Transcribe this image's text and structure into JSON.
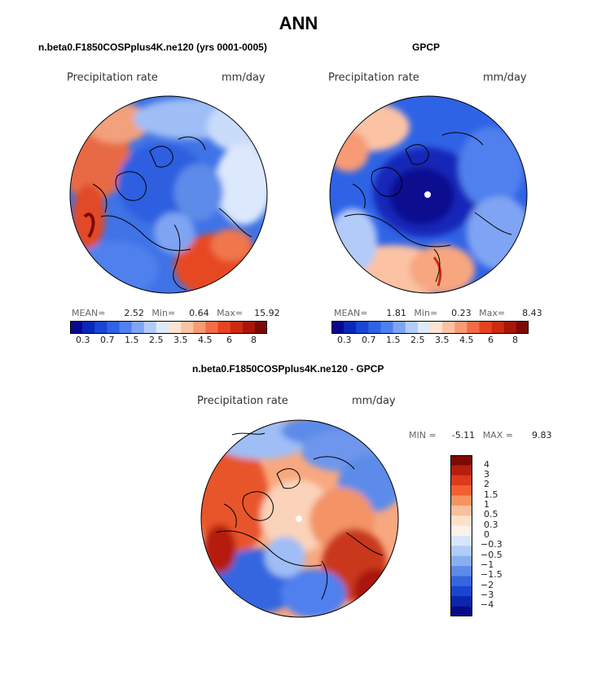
{
  "title": "ANN",
  "panels": [
    {
      "title": "n.beta0.F1850COSPplus4K.ne120 (yrs 0001-0005)",
      "variable": "Precipitation rate",
      "units": "mm/day",
      "stats": {
        "mean_label": "MEAN=",
        "mean": "2.52",
        "min_label": "Min=",
        "min": "0.64",
        "max_label": "Max=",
        "max": "15.92"
      }
    },
    {
      "title": "GPCP",
      "variable": "Precipitation rate",
      "units": "mm/day",
      "stats": {
        "mean_label": "MEAN=",
        "mean": "1.81",
        "min_label": "Min=",
        "min": "0.23",
        "max_label": "Max=",
        "max": "8.43"
      }
    },
    {
      "title": "n.beta0.F1850COSPplus4K.ne120 - GPCP",
      "variable": "Precipitation rate",
      "units": "mm/day",
      "stats": {
        "min_label": "MIN =",
        "min": "-5.11",
        "max_label": "MAX =",
        "max": "9.83"
      }
    }
  ],
  "colorbar_abs": {
    "colors": [
      "#08088e",
      "#0b27b8",
      "#1946d6",
      "#2f63e6",
      "#4f80ee",
      "#7fa4f3",
      "#b3cbf8",
      "#dfe9fc",
      "#fde3d2",
      "#fbc2a4",
      "#f89a74",
      "#f36c45",
      "#e84320",
      "#cc2a12",
      "#a8160a",
      "#7c0a04"
    ],
    "tick_labels": [
      "0.3",
      "0.7",
      "1.5",
      "2.5",
      "3.5",
      "4.5",
      "6",
      "8"
    ]
  },
  "colorbar_diff": {
    "colors": [
      "#7c0a04",
      "#b51e0e",
      "#dd3a1b",
      "#f2602f",
      "#f7935f",
      "#fbbf9b",
      "#fde1cb",
      "#fbf2ea",
      "#d7e6fb",
      "#b0ccf7",
      "#89aef1",
      "#5d8be9",
      "#3566df",
      "#1a46cf",
      "#0b27b0",
      "#080a86"
    ],
    "tick_labels": [
      "4",
      "3",
      "2",
      "1.5",
      "1",
      "0.5",
      "0.3",
      "0",
      "−0.3",
      "−0.5",
      "−1",
      "−1.5",
      "−2",
      "−3",
      "−4"
    ]
  }
}
